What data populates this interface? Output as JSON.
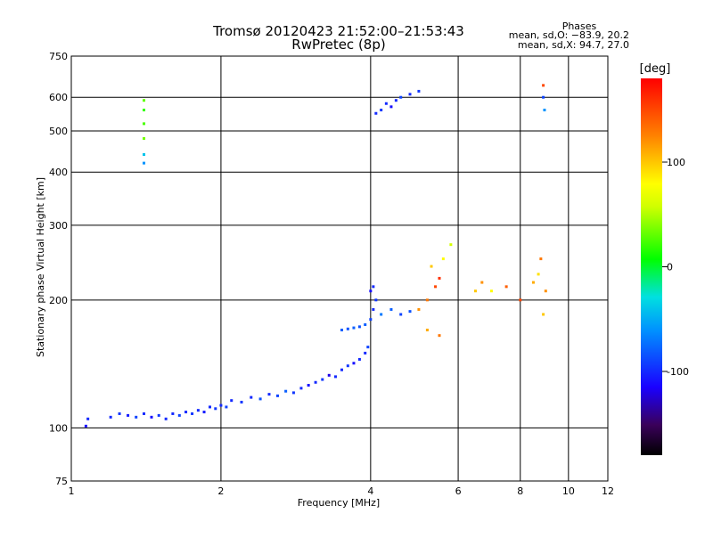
{
  "chart_data": {
    "type": "scatter",
    "title": "Tromsø 20120423 21:52:00–21:53:43",
    "subtitle": "RwPretec (8p)",
    "xlabel": "Frequency [MHz]",
    "ylabel": "Stationary phase Virtual Height [km]",
    "x_scale": "log",
    "y_scale": "log",
    "xlim": [
      1,
      12
    ],
    "ylim": [
      75,
      750
    ],
    "x_ticks": [
      1,
      2,
      4,
      6,
      8,
      10,
      12
    ],
    "y_ticks": [
      75,
      100,
      200,
      300,
      400,
      500,
      600,
      750
    ],
    "grid": true,
    "phase_info": {
      "heading": "Phases",
      "line_o": "mean, sd,O: −83.9, 20.2",
      "line_x": "mean, sd,X:  94.7, 27.0"
    },
    "colorbar": {
      "label": "[deg]",
      "range": [
        -180,
        180
      ],
      "ticks": [
        100,
        0,
        -100
      ],
      "colormap": "rainbow"
    },
    "series": [
      {
        "points": [
          [
            1.07,
            101,
            -110
          ],
          [
            1.08,
            105,
            -100
          ],
          [
            1.2,
            106,
            -100
          ],
          [
            1.25,
            108,
            -95
          ],
          [
            1.3,
            107,
            -105
          ],
          [
            1.35,
            106,
            -90
          ],
          [
            1.4,
            108,
            -100
          ],
          [
            1.45,
            106,
            -110
          ],
          [
            1.5,
            107,
            -95
          ],
          [
            1.55,
            105,
            -100
          ],
          [
            1.6,
            108,
            -100
          ],
          [
            1.65,
            107,
            -90
          ],
          [
            1.7,
            109,
            -100
          ],
          [
            1.75,
            108,
            -95
          ],
          [
            1.8,
            110,
            -100
          ],
          [
            1.85,
            109,
            -105
          ],
          [
            1.9,
            112,
            -100
          ],
          [
            1.95,
            111,
            -95
          ],
          [
            2.0,
            113,
            -100
          ],
          [
            2.05,
            112,
            -90
          ],
          [
            2.1,
            116,
            -100
          ],
          [
            2.2,
            115,
            -95
          ],
          [
            2.3,
            118,
            -100
          ],
          [
            2.4,
            117,
            -85
          ],
          [
            2.5,
            120,
            -100
          ],
          [
            2.6,
            119,
            -90
          ],
          [
            2.7,
            122,
            -80
          ],
          [
            2.8,
            121,
            -95
          ],
          [
            2.9,
            124,
            -100
          ],
          [
            3.0,
            126,
            -110
          ],
          [
            3.1,
            128,
            -100
          ],
          [
            3.2,
            130,
            -95
          ],
          [
            3.3,
            133,
            -120
          ],
          [
            3.4,
            132,
            -100
          ],
          [
            3.5,
            137,
            -100
          ],
          [
            3.6,
            140,
            -95
          ],
          [
            3.7,
            142,
            -110
          ],
          [
            3.8,
            145,
            -100
          ],
          [
            3.9,
            150,
            -100
          ],
          [
            3.95,
            155,
            -90
          ],
          [
            3.5,
            170,
            -80
          ],
          [
            3.6,
            171,
            -85
          ],
          [
            3.7,
            172,
            -80
          ],
          [
            3.8,
            173,
            -85
          ],
          [
            3.9,
            175,
            -80
          ],
          [
            4.0,
            180,
            -90
          ],
          [
            4.05,
            190,
            -100
          ],
          [
            4.1,
            200,
            -95
          ],
          [
            4.0,
            210,
            -110
          ],
          [
            4.05,
            215,
            -100
          ],
          [
            4.2,
            185,
            -70
          ],
          [
            4.4,
            190,
            -80
          ],
          [
            4.6,
            185,
            -90
          ],
          [
            4.8,
            188,
            -85
          ],
          [
            5.0,
            190,
            120
          ],
          [
            5.2,
            200,
            130
          ],
          [
            5.4,
            215,
            150
          ],
          [
            5.5,
            225,
            160
          ],
          [
            5.3,
            240,
            100
          ],
          [
            5.6,
            250,
            80
          ],
          [
            5.8,
            270,
            60
          ],
          [
            5.2,
            170,
            110
          ],
          [
            5.5,
            165,
            130
          ],
          [
            6.5,
            210,
            100
          ],
          [
            6.7,
            220,
            120
          ],
          [
            7.0,
            210,
            80
          ],
          [
            7.5,
            215,
            140
          ],
          [
            8.0,
            200,
            150
          ],
          [
            8.5,
            220,
            110
          ],
          [
            8.7,
            230,
            90
          ],
          [
            8.8,
            250,
            130
          ],
          [
            9.0,
            210,
            120
          ],
          [
            8.9,
            185,
            100
          ],
          [
            4.1,
            550,
            -100
          ],
          [
            4.2,
            560,
            -95
          ],
          [
            4.3,
            580,
            -100
          ],
          [
            4.4,
            570,
            -110
          ],
          [
            4.5,
            590,
            -100
          ],
          [
            4.6,
            600,
            -90
          ],
          [
            4.8,
            610,
            -100
          ],
          [
            5.0,
            620,
            -95
          ],
          [
            1.4,
            590,
            30
          ],
          [
            1.4,
            560,
            20
          ],
          [
            1.4,
            520,
            25
          ],
          [
            1.4,
            480,
            35
          ],
          [
            1.4,
            440,
            -40
          ],
          [
            1.4,
            420,
            -60
          ],
          [
            8.9,
            640,
            150
          ],
          [
            8.9,
            600,
            -90
          ],
          [
            8.95,
            560,
            -60
          ]
        ]
      }
    ]
  }
}
